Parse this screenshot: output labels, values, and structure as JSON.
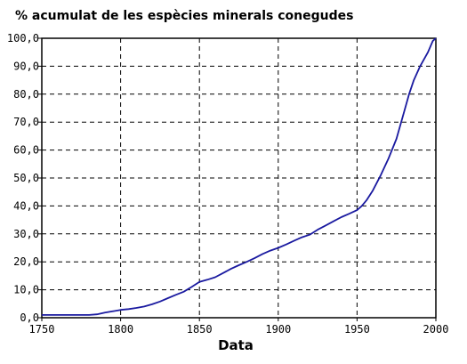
{
  "chart_data": {
    "type": "line",
    "title": "% acumulat de les espècies minerals conegudes",
    "xlabel": "Data",
    "ylabel": "",
    "xlim": [
      1750,
      2000
    ],
    "ylim": [
      0,
      100
    ],
    "x_ticks": [
      "1750",
      "1800",
      "1850",
      "1900",
      "1950",
      "2000"
    ],
    "y_ticks": [
      "0,0",
      "10,0",
      "20,0",
      "30,0",
      "40,0",
      "50,0",
      "60,0",
      "70,0",
      "80,0",
      "90,0",
      "100,0"
    ],
    "grid": true,
    "line_color": "#1a1aa0",
    "series": [
      {
        "x": [
          1750,
          1760,
          1770,
          1780,
          1785,
          1790,
          1795,
          1800,
          1805,
          1810,
          1815,
          1820,
          1825,
          1830,
          1835,
          1840,
          1845,
          1850,
          1855,
          1860,
          1865,
          1870,
          1875,
          1880,
          1885,
          1890,
          1895,
          1900,
          1905,
          1910,
          1915,
          1920,
          1925,
          1930,
          1935,
          1940,
          1945,
          1950,
          1953,
          1956,
          1960,
          1965,
          1970,
          1975,
          1980,
          1983,
          1986,
          1990,
          1995,
          1998,
          2000
        ],
        "y": [
          1.0,
          1.0,
          1.0,
          1.0,
          1.2,
          1.8,
          2.3,
          2.8,
          3.1,
          3.5,
          4.0,
          4.8,
          5.8,
          7.0,
          8.2,
          9.3,
          11.0,
          12.8,
          13.6,
          14.5,
          16.0,
          17.5,
          18.8,
          20.0,
          21.3,
          22.8,
          24.0,
          25.0,
          26.2,
          27.5,
          28.8,
          29.7,
          31.5,
          33.0,
          34.5,
          36.0,
          37.2,
          38.5,
          40.0,
          42.0,
          45.5,
          51.0,
          57.0,
          64.0,
          74.0,
          80.0,
          85.0,
          90.0,
          95.0,
          99.0,
          100.0
        ]
      }
    ]
  }
}
